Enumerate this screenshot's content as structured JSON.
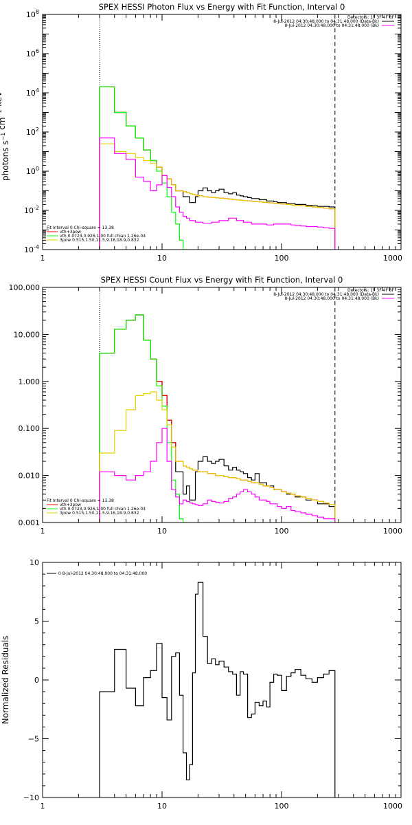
{
  "chart_data": [
    {
      "type": "line",
      "title": "SPEX HESSI Photon Flux vs Energy with Fit Function, Interval 0",
      "ylabel": "photons s^-1 cm^-2 keV^-1",
      "xlabel": "",
      "xscale": "log",
      "yscale": "log",
      "xlim": [
        1,
        1000
      ],
      "ylim": [
        0.0001,
        100000000
      ],
      "x_ticks": [
        "1",
        "10",
        "100",
        "1000"
      ],
      "y_ticks": [
        "10^-4",
        "10^-2",
        "10^0",
        "10^2",
        "10^4",
        "10^6",
        "10^8"
      ],
      "vlines": [
        {
          "x": 3,
          "style": "dotted"
        },
        {
          "x": 280,
          "style": "dashed"
        }
      ],
      "legend_right": [
        "Detectors: 1F 3F 4F 8F",
        "8-Jul-2012 04:30:48.000 to 04:31:48.000 (Data-Bk)",
        "8-Jul-2012 04:30:48.000 to 04:31:48.000 (Bk)"
      ],
      "legend_left": [
        "Fit Interval 0   Chi-square = 13.38",
        "vth+3pow",
        "vth 0.0723,0.926,1.00  full chian 1.26e-04",
        "3pow 0.515,1.50,11.5,9.16,18.9,0.832"
      ],
      "bin_edges": [
        3,
        3.5,
        4,
        4.5,
        5,
        5.5,
        6,
        6.5,
        7,
        7.5,
        8,
        8.5,
        9,
        9.5,
        10,
        10.5,
        11,
        11.5,
        12,
        13,
        14,
        15,
        16,
        17,
        18,
        19,
        20,
        22,
        24,
        26,
        28,
        30,
        33,
        36,
        39,
        42,
        45,
        48,
        52,
        56,
        60,
        65,
        70,
        75,
        80,
        86,
        92,
        100,
        110,
        120,
        130,
        145,
        160,
        180,
        200,
        225,
        250,
        280
      ],
      "series": [
        {
          "color": "#000000",
          "values": [
            20000,
            20000,
            1000,
            1000,
            200,
            200,
            50,
            50,
            12,
            12,
            3.5,
            3.5,
            1.6,
            1.6,
            0.6,
            0.6,
            0.4,
            0.4,
            0.2,
            0.1,
            0.1,
            0.05,
            0.05,
            0.025,
            0.025,
            0.05,
            0.1,
            0.14,
            0.1,
            0.08,
            0.1,
            0.12,
            0.08,
            0.07,
            0.08,
            0.06,
            0.055,
            0.05,
            0.045,
            0.04,
            0.04,
            0.035,
            0.035,
            0.03,
            0.03,
            0.028,
            0.025,
            0.025,
            0.022,
            0.022,
            0.02,
            0.02,
            0.018,
            0.017,
            0.016,
            0.016,
            0.015
          ]
        },
        {
          "color": "#ff0000",
          "values": [
            20000,
            20000,
            1000,
            1000,
            200,
            200,
            50,
            50,
            12,
            12,
            3.5,
            3.5,
            1.6,
            1.6,
            0.6,
            0.6,
            0.4,
            0.4,
            0.2,
            0.1,
            0.1,
            0.09,
            0.08,
            0.07,
            0.065,
            0.06,
            0.055,
            0.05,
            0.047,
            0.045,
            0.043,
            0.042,
            0.04,
            0.038,
            0.036,
            0.034,
            0.033,
            0.032,
            0.03,
            0.029,
            0.028,
            0.027,
            0.026,
            0.025,
            0.024,
            0.023,
            0.022,
            0.021,
            0.02,
            0.019,
            0.018,
            0.017,
            0.016,
            0.015,
            0.014,
            0.013,
            0.012
          ]
        },
        {
          "color": "#00ff00",
          "values": [
            20000,
            20000,
            1000,
            1000,
            200,
            200,
            50,
            50,
            12,
            12,
            3.5,
            3.5,
            1.0,
            1.0,
            0.25,
            0.25,
            0.05,
            0.05,
            0.008,
            0.002,
            0.0003,
            0.0001
          ]
        },
        {
          "color": "#e5d200",
          "values": [
            25,
            25,
            10,
            10,
            8,
            8,
            5,
            5,
            3.5,
            3.5,
            2.5,
            2.5,
            1.6,
            1.6,
            0.6,
            0.6,
            0.4,
            0.4,
            0.2,
            0.1,
            0.1,
            0.09,
            0.08,
            0.07,
            0.065,
            0.06,
            0.055,
            0.05,
            0.047,
            0.045,
            0.043,
            0.042,
            0.04,
            0.038,
            0.036,
            0.034,
            0.033,
            0.032,
            0.03,
            0.029,
            0.028,
            0.027,
            0.026,
            0.025,
            0.024,
            0.023,
            0.022,
            0.021,
            0.02,
            0.019,
            0.018,
            0.017,
            0.016,
            0.015,
            0.014,
            0.013,
            0.012
          ]
        },
        {
          "color": "#ff00ff",
          "values": [
            50,
            50,
            8,
            8,
            4,
            4,
            0.5,
            0.5,
            0.3,
            0.3,
            0.1,
            0.1,
            0.2,
            0.2,
            0.6,
            0.6,
            0.15,
            0.15,
            0.05,
            0.015,
            0.008,
            0.005,
            0.004,
            0.003,
            0.003,
            0.0025,
            0.0025,
            0.0022,
            0.0022,
            0.0025,
            0.0025,
            0.003,
            0.003,
            0.004,
            0.004,
            0.003,
            0.003,
            0.0025,
            0.0025,
            0.002,
            0.002,
            0.002,
            0.002,
            0.0018,
            0.0018,
            0.002,
            0.002,
            0.002,
            0.002,
            0.0018,
            0.0017,
            0.0016,
            0.0015,
            0.0015,
            0.0014,
            0.0013,
            0.0012
          ]
        }
      ]
    },
    {
      "type": "line",
      "title": "SPEX HESSI Count Flux vs Energy with Fit Function, Interval 0",
      "ylabel": "",
      "xlabel": "",
      "xscale": "log",
      "yscale": "log",
      "xlim": [
        1,
        1000
      ],
      "ylim": [
        0.001,
        100
      ],
      "x_ticks": [
        "1",
        "10",
        "100",
        "1000"
      ],
      "y_ticks": [
        "0.001",
        "0.010",
        "0.100",
        "1.000",
        "10.000",
        "100.000"
      ],
      "vlines": [
        {
          "x": 3,
          "style": "dotted"
        },
        {
          "x": 280,
          "style": "dashed"
        }
      ],
      "legend_right": [
        "Detectors: 1F 3F 4F 8F",
        "8-Jul-2012 04:30:48.000 to 04:31:48.000 (Data-Bk)",
        "8-Jul-2012 04:30:48.000 to 04:31:48.000 (Bk)"
      ],
      "legend_left": [
        "Fit Interval 0   Chi-square = 13.38",
        "vth+3pow",
        "vth 0.0723,0.926,1.00  full chian 1.26e-04",
        "3pow 0.515,1.50,11.5,9.16,18.9,0.832"
      ],
      "bin_edges": [
        3,
        3.5,
        4,
        4.5,
        5,
        5.5,
        6,
        6.5,
        7,
        7.5,
        8,
        8.5,
        9,
        9.5,
        10,
        10.5,
        11,
        11.5,
        12,
        13,
        14,
        15,
        16,
        17,
        18,
        19,
        20,
        22,
        24,
        26,
        28,
        30,
        33,
        36,
        39,
        42,
        45,
        48,
        52,
        56,
        60,
        65,
        70,
        75,
        80,
        86,
        92,
        100,
        110,
        120,
        130,
        145,
        160,
        180,
        200,
        225,
        250,
        280
      ],
      "series": [
        {
          "color": "#000000",
          "values": [
            4,
            4,
            13,
            13,
            20,
            20,
            26,
            26,
            7.5,
            7.5,
            3,
            3,
            1,
            1,
            0.5,
            0.5,
            0.15,
            0.15,
            0.05,
            0.012,
            0.012,
            0.004,
            0.006,
            0.003,
            0.003,
            0.012,
            0.02,
            0.025,
            0.02,
            0.018,
            0.02,
            0.022,
            0.016,
            0.013,
            0.015,
            0.013,
            0.012,
            0.011,
            0.009,
            0.008,
            0.011,
            0.007,
            0.007,
            0.006,
            0.006,
            0.005,
            0.005,
            0.0045,
            0.004,
            0.004,
            0.0035,
            0.0035,
            0.003,
            0.003,
            0.0025,
            0.0025,
            0.0022
          ]
        },
        {
          "color": "#ff0000",
          "values": [
            4,
            4,
            13,
            13,
            20,
            20,
            26,
            26,
            7.5,
            7.5,
            3,
            3,
            1,
            1,
            0.5,
            0.5,
            0.15,
            0.15,
            0.05,
            0.02,
            0.02,
            0.016,
            0.015,
            0.014,
            0.013,
            0.013,
            0.012,
            0.012,
            0.011,
            0.011,
            0.01,
            0.01,
            0.0095,
            0.009,
            0.009,
            0.0085,
            0.008,
            0.008,
            0.0075,
            0.007,
            0.007,
            0.0065,
            0.006,
            0.006,
            0.0055,
            0.005,
            0.005,
            0.0045,
            0.0042,
            0.004,
            0.0037,
            0.0035,
            0.0032,
            0.003,
            0.0028,
            0.0026,
            0.0024
          ]
        },
        {
          "color": "#00ff00",
          "values": [
            4,
            4,
            13,
            13,
            20,
            20,
            26,
            26,
            7.5,
            7.5,
            3,
            3,
            0.8,
            0.8,
            0.3,
            0.3,
            0.05,
            0.05,
            0.008,
            0.004,
            0.0012,
            0.001
          ]
        },
        {
          "color": "#e5d200",
          "values": [
            0.03,
            0.03,
            0.09,
            0.09,
            0.25,
            0.25,
            0.5,
            0.5,
            0.55,
            0.55,
            0.6,
            0.6,
            0.4,
            0.4,
            0.25,
            0.25,
            0.12,
            0.12,
            0.04,
            0.02,
            0.02,
            0.016,
            0.015,
            0.014,
            0.013,
            0.013,
            0.012,
            0.012,
            0.011,
            0.011,
            0.01,
            0.01,
            0.0095,
            0.009,
            0.009,
            0.0085,
            0.008,
            0.008,
            0.0075,
            0.007,
            0.007,
            0.0065,
            0.006,
            0.006,
            0.0055,
            0.005,
            0.005,
            0.0045,
            0.0042,
            0.004,
            0.0037,
            0.0035,
            0.0032,
            0.003,
            0.0028,
            0.0026,
            0.0024
          ]
        },
        {
          "color": "#ff00ff",
          "values": [
            0.012,
            0.012,
            0.01,
            0.01,
            0.008,
            0.008,
            0.01,
            0.01,
            0.012,
            0.012,
            0.02,
            0.02,
            0.05,
            0.05,
            0.1,
            0.1,
            0.02,
            0.02,
            0.005,
            0.0035,
            0.0025,
            0.003,
            0.0028,
            0.0026,
            0.0025,
            0.0024,
            0.0023,
            0.0025,
            0.003,
            0.0028,
            0.0027,
            0.0026,
            0.0028,
            0.0032,
            0.0035,
            0.004,
            0.0045,
            0.005,
            0.0045,
            0.004,
            0.0035,
            0.003,
            0.003,
            0.0028,
            0.0025,
            0.0025,
            0.0022,
            0.002,
            0.0022,
            0.0018,
            0.0017,
            0.0016,
            0.0015,
            0.0014,
            0.0013,
            0.0012,
            0.0012
          ]
        }
      ]
    },
    {
      "type": "line",
      "title": "",
      "ylabel": "Normalized Residuals",
      "xlabel": "",
      "xscale": "log",
      "yscale": "linear",
      "xlim": [
        1,
        1000
      ],
      "ylim": [
        -10,
        10
      ],
      "x_ticks": [
        "1",
        "10",
        "100",
        "1000"
      ],
      "y_ticks": [
        "-10",
        "-5",
        "0",
        "5",
        "10"
      ],
      "legend_left": [
        "0  8-Jul-2012 04:30:48.000 to 04:31:48.000"
      ],
      "bin_edges": [
        3,
        3.5,
        4,
        4.5,
        5,
        5.5,
        6,
        6.5,
        7,
        7.5,
        8,
        8.5,
        9,
        9.5,
        10,
        10.5,
        11,
        11.5,
        12,
        13,
        14,
        15,
        16,
        17,
        18,
        19,
        20,
        22,
        24,
        26,
        28,
        30,
        33,
        36,
        39,
        42,
        45,
        48,
        52,
        56,
        60,
        65,
        70,
        75,
        80,
        86,
        92,
        100,
        110,
        120,
        130,
        145,
        160,
        180,
        200,
        225,
        250,
        280
      ],
      "series": [
        {
          "color": "#000000",
          "values": [
            -1.0,
            -1.0,
            2.6,
            2.6,
            -0.7,
            -0.7,
            -2.2,
            -2.2,
            0.2,
            0.2,
            0.8,
            0.8,
            3.1,
            3.1,
            -1.5,
            -1.5,
            -3.4,
            -3.4,
            2.0,
            2.3,
            -1.3,
            -6.2,
            -8.5,
            -7.2,
            0.6,
            7.3,
            8.3,
            3.7,
            1.4,
            1.8,
            1.3,
            1.6,
            1.1,
            0.7,
            0.5,
            -1.3,
            0.7,
            0.5,
            -3.2,
            -2.9,
            -1.9,
            -2.2,
            -1.8,
            -2.3,
            -0.2,
            0.5,
            0.4,
            -0.9,
            0.3,
            0.6,
            0.9,
            0.4,
            0.1,
            -0.2,
            0.2,
            0.5,
            0.8
          ]
        }
      ]
    }
  ]
}
